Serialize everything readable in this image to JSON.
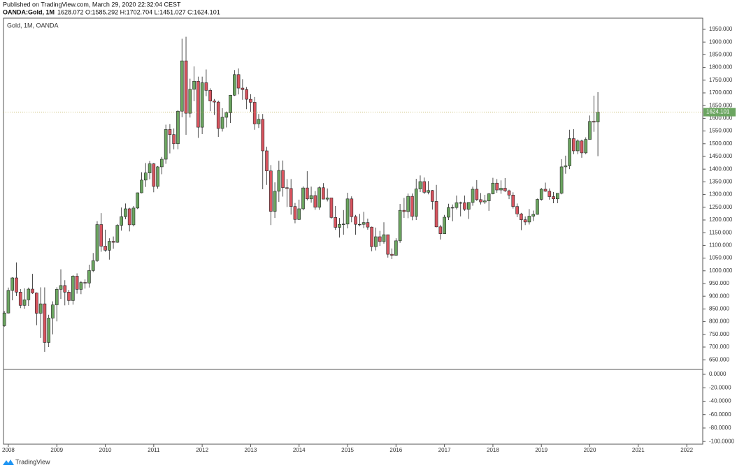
{
  "header": {
    "published": "Published on TradingView.com, March 29, 2020 22:32:04 CEST",
    "symbol": "OANDA:Gold, 1M",
    "quote": "1628.072 O:1585.292 H:1702.704 L:1451.027 C:1624.101"
  },
  "footer": {
    "brand": "TradingView"
  },
  "chart_data": {
    "type": "candlestick",
    "legend": "Gold, 1M, OANDA",
    "up_color": "#6ba560",
    "down_color": "#d8545f",
    "last_price_line_color": "#b5a642",
    "xlim": [
      2007.9,
      2022.33
    ],
    "xticks": [
      2008,
      2009,
      2010,
      2011,
      2012,
      2013,
      2014,
      2015,
      2016,
      2017,
      2018,
      2019,
      2020,
      2021,
      2022
    ],
    "ylim": [
      612,
      1994
    ],
    "yticks": [
      {
        "value": 650,
        "label": "650.000"
      },
      {
        "value": 700,
        "label": "700.000"
      },
      {
        "value": 750,
        "label": "750.000"
      },
      {
        "value": 800,
        "label": "800.000"
      },
      {
        "value": 850,
        "label": "850.000"
      },
      {
        "value": 900,
        "label": "900.000"
      },
      {
        "value": 950,
        "label": "950.000"
      },
      {
        "value": 1000,
        "label": "1000.000"
      },
      {
        "value": 1050,
        "label": "1050.000"
      },
      {
        "value": 1100,
        "label": "1100.000"
      },
      {
        "value": 1150,
        "label": "1150.000"
      },
      {
        "value": 1200,
        "label": "1200.000"
      },
      {
        "value": 1250,
        "label": "1250.000"
      },
      {
        "value": 1300,
        "label": "1300.000"
      },
      {
        "value": 1350,
        "label": "1350.000"
      },
      {
        "value": 1400,
        "label": "1400.000"
      },
      {
        "value": 1450,
        "label": "1450.000"
      },
      {
        "value": 1500,
        "label": "1500.000"
      },
      {
        "value": 1550,
        "label": "1550.000"
      },
      {
        "value": 1600,
        "label": "1600.000"
      },
      {
        "value": 1650,
        "label": "1650.000"
      },
      {
        "value": 1700,
        "label": "1700.000"
      },
      {
        "value": 1750,
        "label": "1750.000"
      },
      {
        "value": 1800,
        "label": "1800.000"
      },
      {
        "value": 1850,
        "label": "1850.000"
      },
      {
        "value": 1900,
        "label": "1900.000"
      },
      {
        "value": 1950,
        "label": "1950.000"
      }
    ],
    "y2lim": [
      -104,
      7.3
    ],
    "y2ticks": [
      {
        "value": 0,
        "label": "0.0000"
      },
      {
        "value": -20,
        "label": "-20.0000"
      },
      {
        "value": -40,
        "label": "-40.0000"
      },
      {
        "value": -60,
        "label": "-60.0000"
      },
      {
        "value": -80,
        "label": "-80.0000"
      },
      {
        "value": -100,
        "label": "-100.0000"
      }
    ],
    "last_price_label": "1624.101",
    "x": [
      "2007-12",
      "2008-01",
      "2008-02",
      "2008-03",
      "2008-04",
      "2008-05",
      "2008-06",
      "2008-07",
      "2008-08",
      "2008-09",
      "2008-10",
      "2008-11",
      "2008-12",
      "2009-01",
      "2009-02",
      "2009-03",
      "2009-04",
      "2009-05",
      "2009-06",
      "2009-07",
      "2009-08",
      "2009-09",
      "2009-10",
      "2009-11",
      "2009-12",
      "2010-01",
      "2010-02",
      "2010-03",
      "2010-04",
      "2010-05",
      "2010-06",
      "2010-07",
      "2010-08",
      "2010-09",
      "2010-10",
      "2010-11",
      "2010-12",
      "2011-01",
      "2011-02",
      "2011-03",
      "2011-04",
      "2011-05",
      "2011-06",
      "2011-07",
      "2011-08",
      "2011-09",
      "2011-10",
      "2011-11",
      "2011-12",
      "2012-01",
      "2012-02",
      "2012-03",
      "2012-04",
      "2012-05",
      "2012-06",
      "2012-07",
      "2012-08",
      "2012-09",
      "2012-10",
      "2012-11",
      "2012-12",
      "2013-01",
      "2013-02",
      "2013-03",
      "2013-04",
      "2013-05",
      "2013-06",
      "2013-07",
      "2013-08",
      "2013-09",
      "2013-10",
      "2013-11",
      "2013-12",
      "2014-01",
      "2014-02",
      "2014-03",
      "2014-04",
      "2014-05",
      "2014-06",
      "2014-07",
      "2014-08",
      "2014-09",
      "2014-10",
      "2014-11",
      "2014-12",
      "2015-01",
      "2015-02",
      "2015-03",
      "2015-04",
      "2015-05",
      "2015-06",
      "2015-07",
      "2015-08",
      "2015-09",
      "2015-10",
      "2015-11",
      "2015-12",
      "2016-01",
      "2016-02",
      "2016-03",
      "2016-04",
      "2016-05",
      "2016-06",
      "2016-07",
      "2016-08",
      "2016-09",
      "2016-10",
      "2016-11",
      "2016-12",
      "2017-01",
      "2017-02",
      "2017-03",
      "2017-04",
      "2017-05",
      "2017-06",
      "2017-07",
      "2017-08",
      "2017-09",
      "2017-10",
      "2017-11",
      "2017-12",
      "2018-01",
      "2018-02",
      "2018-03",
      "2018-04",
      "2018-05",
      "2018-06",
      "2018-07",
      "2018-08",
      "2018-09",
      "2018-10",
      "2018-11",
      "2018-12",
      "2019-01",
      "2019-02",
      "2019-03",
      "2019-04",
      "2019-05",
      "2019-06",
      "2019-07",
      "2019-08",
      "2019-09",
      "2019-10",
      "2019-11",
      "2019-12",
      "2020-01",
      "2020-02",
      "2020-03"
    ],
    "open": [
      784,
      834,
      923,
      972,
      916,
      864,
      886,
      928,
      913,
      833,
      870,
      718,
      814,
      866,
      927,
      942,
      916,
      883,
      979,
      927,
      954,
      952,
      1001,
      1040,
      1182,
      1097,
      1081,
      1116,
      1112,
      1179,
      1213,
      1244,
      1181,
      1247,
      1307,
      1357,
      1385,
      1421,
      1332,
      1409,
      1439,
      1556,
      1536,
      1500,
      1628,
      1826,
      1620,
      1714,
      1746,
      1565,
      1740,
      1710,
      1668,
      1664,
      1560,
      1604,
      1622,
      1691,
      1772,
      1719,
      1713,
      1675,
      1663,
      1578,
      1596,
      1472,
      1393,
      1234,
      1313,
      1395,
      1327,
      1324,
      1253,
      1202,
      1244,
      1326,
      1283,
      1296,
      1250,
      1327,
      1282,
      1287,
      1210,
      1171,
      1183,
      1184,
      1283,
      1213,
      1183,
      1183,
      1190,
      1172,
      1095,
      1134,
      1115,
      1142,
      1065,
      1061,
      1118,
      1238,
      1233,
      1293,
      1214,
      1322,
      1351,
      1309,
      1316,
      1273,
      1173,
      1146,
      1211,
      1249,
      1249,
      1268,
      1268,
      1242,
      1269,
      1321,
      1280,
      1271,
      1275,
      1303,
      1345,
      1318,
      1325,
      1315,
      1298,
      1253,
      1224,
      1201,
      1192,
      1215,
      1222,
      1281,
      1321,
      1313,
      1292,
      1283,
      1305,
      1409,
      1413,
      1520,
      1472,
      1511,
      1464,
      1517,
      1588,
      1585.292
    ],
    "high": [
      842,
      934,
      975,
      1033,
      928,
      931,
      934,
      988,
      915,
      935,
      935,
      827,
      880,
      935,
      1006,
      963,
      925,
      983,
      990,
      960,
      966,
      1024,
      1070,
      1195,
      1227,
      1162,
      1128,
      1135,
      1184,
      1249,
      1265,
      1248,
      1255,
      1308,
      1388,
      1424,
      1432,
      1424,
      1412,
      1448,
      1575,
      1577,
      1560,
      1632,
      1913,
      1921,
      1756,
      1804,
      1764,
      1764,
      1792,
      1718,
      1676,
      1669,
      1640,
      1627,
      1692,
      1790,
      1796,
      1754,
      1723,
      1695,
      1684,
      1617,
      1617,
      1488,
      1416,
      1348,
      1433,
      1434,
      1361,
      1361,
      1267,
      1280,
      1332,
      1392,
      1331,
      1314,
      1332,
      1345,
      1324,
      1287,
      1255,
      1208,
      1239,
      1307,
      1293,
      1220,
      1224,
      1232,
      1205,
      1174,
      1170,
      1157,
      1191,
      1142,
      1088,
      1128,
      1263,
      1287,
      1304,
      1304,
      1362,
      1375,
      1367,
      1353,
      1318,
      1338,
      1181,
      1220,
      1264,
      1261,
      1296,
      1272,
      1296,
      1270,
      1331,
      1357,
      1306,
      1299,
      1306,
      1366,
      1361,
      1356,
      1365,
      1319,
      1309,
      1265,
      1228,
      1214,
      1243,
      1237,
      1284,
      1326,
      1347,
      1324,
      1310,
      1305,
      1439,
      1453,
      1555,
      1557,
      1517,
      1516,
      1525,
      1611,
      1689,
      1702.704
    ],
    "low": [
      780,
      832,
      884,
      901,
      853,
      851,
      862,
      909,
      786,
      736,
      681,
      700,
      750,
      801,
      889,
      864,
      865,
      867,
      910,
      908,
      930,
      934,
      995,
      1035,
      1075,
      1075,
      1044,
      1087,
      1110,
      1158,
      1203,
      1155,
      1175,
      1243,
      1305,
      1330,
      1360,
      1309,
      1323,
      1380,
      1421,
      1462,
      1478,
      1478,
      1604,
      1535,
      1603,
      1667,
      1523,
      1538,
      1687,
      1628,
      1613,
      1527,
      1548,
      1564,
      1582,
      1688,
      1694,
      1673,
      1636,
      1626,
      1555,
      1562,
      1321,
      1338,
      1180,
      1208,
      1271,
      1292,
      1251,
      1221,
      1187,
      1200,
      1238,
      1277,
      1268,
      1240,
      1240,
      1281,
      1273,
      1205,
      1161,
      1131,
      1142,
      1167,
      1191,
      1142,
      1175,
      1168,
      1162,
      1077,
      1080,
      1098,
      1107,
      1052,
      1046,
      1061,
      1110,
      1208,
      1207,
      1199,
      1200,
      1310,
      1302,
      1301,
      1241,
      1171,
      1123,
      1146,
      1200,
      1195,
      1242,
      1214,
      1236,
      1204,
      1256,
      1275,
      1261,
      1263,
      1236,
      1301,
      1307,
      1303,
      1310,
      1282,
      1245,
      1211,
      1160,
      1180,
      1182,
      1196,
      1221,
      1276,
      1311,
      1280,
      1266,
      1266,
      1301,
      1382,
      1400,
      1459,
      1459,
      1445,
      1459,
      1516,
      1547,
      1451.027
    ],
    "close": [
      834,
      923,
      972,
      916,
      864,
      886,
      928,
      913,
      833,
      870,
      718,
      814,
      866,
      927,
      942,
      916,
      883,
      979,
      927,
      954,
      952,
      1001,
      1040,
      1182,
      1097,
      1081,
      1116,
      1112,
      1179,
      1213,
      1244,
      1181,
      1247,
      1307,
      1357,
      1385,
      1421,
      1332,
      1409,
      1439,
      1556,
      1536,
      1500,
      1628,
      1826,
      1620,
      1714,
      1746,
      1565,
      1740,
      1710,
      1668,
      1664,
      1560,
      1604,
      1622,
      1691,
      1772,
      1719,
      1713,
      1675,
      1663,
      1578,
      1596,
      1472,
      1393,
      1234,
      1313,
      1395,
      1327,
      1324,
      1253,
      1202,
      1244,
      1326,
      1283,
      1296,
      1250,
      1327,
      1282,
      1287,
      1210,
      1171,
      1183,
      1184,
      1283,
      1213,
      1183,
      1183,
      1190,
      1172,
      1095,
      1134,
      1115,
      1142,
      1065,
      1061,
      1118,
      1238,
      1233,
      1293,
      1214,
      1322,
      1351,
      1309,
      1316,
      1273,
      1173,
      1146,
      1211,
      1249,
      1249,
      1268,
      1268,
      1242,
      1269,
      1321,
      1280,
      1271,
      1275,
      1303,
      1345,
      1318,
      1325,
      1315,
      1298,
      1253,
      1224,
      1201,
      1192,
      1215,
      1222,
      1281,
      1321,
      1313,
      1292,
      1283,
      1305,
      1409,
      1413,
      1520,
      1472,
      1511,
      1464,
      1517,
      1588,
      1585,
      1624.101
    ]
  }
}
